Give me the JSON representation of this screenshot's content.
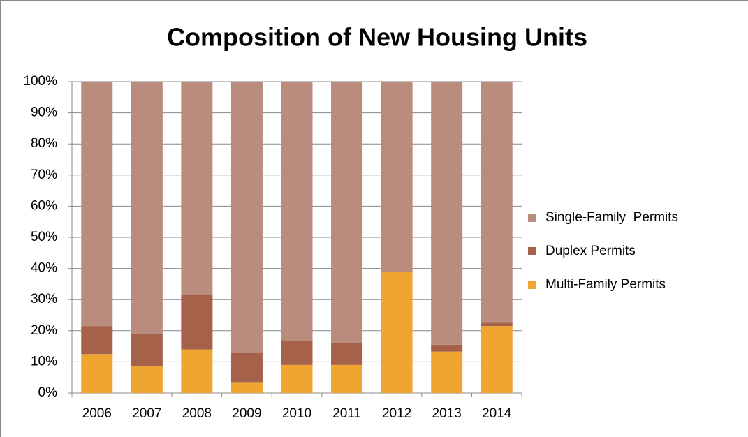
{
  "chart_data": {
    "type": "stacked_bar",
    "title": "Composition of New Housing Units",
    "categories": [
      "2006",
      "2007",
      "2008",
      "2009",
      "2010",
      "2011",
      "2012",
      "2013",
      "2014"
    ],
    "series": [
      {
        "name": "Multi-Family Permits",
        "color": "#f0a530",
        "values": [
          12.5,
          8.5,
          14,
          3.5,
          9,
          9,
          39,
          13.3,
          21.5
        ]
      },
      {
        "name": "Duplex Permits",
        "color": "#a5614a",
        "values": [
          9,
          10.5,
          17.7,
          9.5,
          7.8,
          7,
          0,
          2.2,
          1.3
        ]
      },
      {
        "name": "Single-Family  Permits",
        "color": "#b98c7e",
        "values": [
          78.5,
          81,
          68.3,
          87,
          83.2,
          84,
          61,
          84.5,
          77.2
        ]
      }
    ],
    "ylim": [
      0,
      100
    ],
    "yticks": [
      {
        "value": 0,
        "label": "0%"
      },
      {
        "value": 10,
        "label": "10%"
      },
      {
        "value": 20,
        "label": "20%"
      },
      {
        "value": 30,
        "label": "30%"
      },
      {
        "value": 40,
        "label": "40%"
      },
      {
        "value": 50,
        "label": "50%"
      },
      {
        "value": 60,
        "label": "60%"
      },
      {
        "value": 70,
        "label": "70%"
      },
      {
        "value": 80,
        "label": "80%"
      },
      {
        "value": 90,
        "label": "90%"
      },
      {
        "value": 100,
        "label": "100%"
      }
    ],
    "grid": true,
    "legend": "right"
  }
}
